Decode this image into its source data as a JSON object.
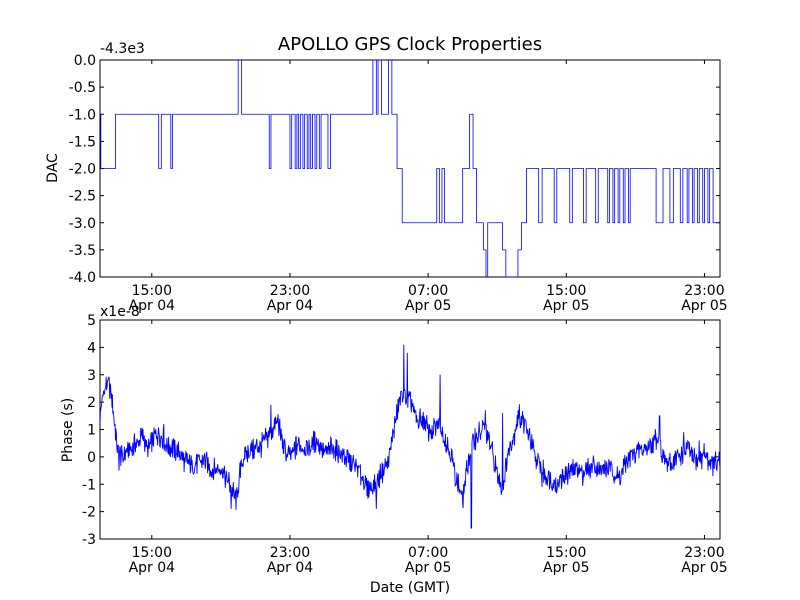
{
  "chart_data": [
    {
      "id": "dac",
      "type": "line",
      "title": "APOLLO GPS Clock Properties",
      "ylabel": "DAC",
      "xlabel": "",
      "offset_label": "-4.3e3",
      "ylim": [
        -4.0,
        0.0
      ],
      "xlim_hours": [
        0,
        35.9
      ],
      "yticks": [
        {
          "v": 0.0,
          "label": "0.0"
        },
        {
          "v": -0.5,
          "label": "-0.5"
        },
        {
          "v": -1.0,
          "label": "-1.0"
        },
        {
          "v": -1.5,
          "label": "-1.5"
        },
        {
          "v": -2.0,
          "label": "-2.0"
        },
        {
          "v": -2.5,
          "label": "-2.5"
        },
        {
          "v": -3.0,
          "label": "-3.0"
        },
        {
          "v": -3.5,
          "label": "-3.5"
        },
        {
          "v": -4.0,
          "label": "-4.0"
        }
      ],
      "xticks": [
        {
          "h": 3,
          "time": "15:00",
          "date": "Apr 04"
        },
        {
          "h": 11,
          "time": "23:00",
          "date": "Apr 04"
        },
        {
          "h": 19,
          "time": "07:00",
          "date": "Apr 05"
        },
        {
          "h": 27,
          "time": "15:00",
          "date": "Apr 05"
        },
        {
          "h": 35,
          "time": "23:00",
          "date": "Apr 05"
        }
      ],
      "color": "#0000ff",
      "series": [
        {
          "name": "DAC",
          "steps": [
            [
              0.0,
              -1.0
            ],
            [
              0.05,
              -2.0
            ],
            [
              0.9,
              -1.0
            ],
            [
              3.4,
              -2.0
            ],
            [
              3.55,
              -1.0
            ],
            [
              4.1,
              -2.0
            ],
            [
              4.2,
              -1.0
            ],
            [
              8.0,
              0.0
            ],
            [
              8.2,
              -1.0
            ],
            [
              9.8,
              -2.0
            ],
            [
              9.9,
              -1.0
            ],
            [
              11.0,
              -2.0
            ],
            [
              11.1,
              -1.0
            ],
            [
              11.3,
              -2.0
            ],
            [
              11.4,
              -1.0
            ],
            [
              11.5,
              -2.0
            ],
            [
              11.6,
              -1.0
            ],
            [
              11.75,
              -2.0
            ],
            [
              11.85,
              -1.0
            ],
            [
              12.0,
              -2.0
            ],
            [
              12.1,
              -1.0
            ],
            [
              12.2,
              -2.0
            ],
            [
              12.3,
              -1.0
            ],
            [
              12.45,
              -2.0
            ],
            [
              12.55,
              -1.0
            ],
            [
              12.7,
              -2.0
            ],
            [
              12.8,
              -1.0
            ],
            [
              13.2,
              -2.0
            ],
            [
              13.35,
              -1.0
            ],
            [
              15.8,
              0.0
            ],
            [
              16.0,
              -1.0
            ],
            [
              16.1,
              0.0
            ],
            [
              16.3,
              -1.0
            ],
            [
              16.7,
              0.0
            ],
            [
              16.9,
              -1.0
            ],
            [
              17.2,
              -2.0
            ],
            [
              17.5,
              -3.0
            ],
            [
              19.5,
              -2.0
            ],
            [
              19.65,
              -3.0
            ],
            [
              19.8,
              -2.0
            ],
            [
              19.95,
              -3.0
            ],
            [
              21.0,
              -2.0
            ],
            [
              21.4,
              -1.0
            ],
            [
              21.6,
              -2.0
            ],
            [
              21.8,
              -3.0
            ],
            [
              22.2,
              -3.5
            ],
            [
              22.35,
              -4.0
            ],
            [
              22.45,
              -3.0
            ],
            [
              23.3,
              -3.5
            ],
            [
              23.5,
              -4.0
            ],
            [
              24.2,
              -3.5
            ],
            [
              24.4,
              -3.0
            ],
            [
              24.7,
              -2.0
            ],
            [
              25.4,
              -3.0
            ],
            [
              25.6,
              -2.0
            ],
            [
              26.3,
              -3.0
            ],
            [
              26.45,
              -2.0
            ],
            [
              27.2,
              -3.0
            ],
            [
              27.35,
              -2.0
            ],
            [
              28.0,
              -3.0
            ],
            [
              28.15,
              -2.0
            ],
            [
              28.7,
              -3.0
            ],
            [
              28.85,
              -2.0
            ],
            [
              29.4,
              -3.0
            ],
            [
              29.5,
              -2.0
            ],
            [
              29.7,
              -3.0
            ],
            [
              29.8,
              -2.0
            ],
            [
              30.0,
              -3.0
            ],
            [
              30.1,
              -2.0
            ],
            [
              30.3,
              -3.0
            ],
            [
              30.4,
              -2.0
            ],
            [
              30.6,
              -3.0
            ],
            [
              30.7,
              -2.0
            ],
            [
              32.2,
              -3.0
            ],
            [
              32.6,
              -2.0
            ],
            [
              33.0,
              -3.0
            ],
            [
              33.2,
              -2.0
            ],
            [
              33.6,
              -3.0
            ],
            [
              33.75,
              -2.0
            ],
            [
              34.0,
              -3.0
            ],
            [
              34.1,
              -2.0
            ],
            [
              34.3,
              -3.0
            ],
            [
              34.4,
              -2.0
            ],
            [
              34.6,
              -3.0
            ],
            [
              34.7,
              -2.0
            ],
            [
              34.9,
              -3.0
            ],
            [
              35.0,
              -2.0
            ],
            [
              35.2,
              -3.0
            ],
            [
              35.3,
              -2.0
            ],
            [
              35.5,
              -3.0
            ],
            [
              35.9,
              -3.0
            ]
          ]
        }
      ]
    },
    {
      "id": "phase",
      "type": "line",
      "title": "",
      "ylabel": "Phase (s)",
      "xlabel": "Date (GMT)",
      "offset_label": "x1e-8",
      "ylim": [
        -3,
        5
      ],
      "xlim_hours": [
        0,
        35.9
      ],
      "yticks": [
        {
          "v": 5,
          "label": "5"
        },
        {
          "v": 4,
          "label": "4"
        },
        {
          "v": 3,
          "label": "3"
        },
        {
          "v": 2,
          "label": "2"
        },
        {
          "v": 1,
          "label": "1"
        },
        {
          "v": 0,
          "label": "0"
        },
        {
          "v": -1,
          "label": "-1"
        },
        {
          "v": -2,
          "label": "-2"
        },
        {
          "v": -3,
          "label": "-3"
        }
      ],
      "xticks": [
        {
          "h": 3,
          "time": "15:00",
          "date": "Apr 04"
        },
        {
          "h": 11,
          "time": "23:00",
          "date": "Apr 04"
        },
        {
          "h": 19,
          "time": "07:00",
          "date": "Apr 05"
        },
        {
          "h": 27,
          "time": "15:00",
          "date": "Apr 05"
        },
        {
          "h": 35,
          "time": "23:00",
          "date": "Apr 05"
        }
      ],
      "color": "#0000ff",
      "series": [
        {
          "name": "Phase",
          "points": [
            [
              0.0,
              1.5
            ],
            [
              0.2,
              2.4
            ],
            [
              0.4,
              2.7
            ],
            [
              0.6,
              2.5
            ],
            [
              0.8,
              1.6
            ],
            [
              1.0,
              0.3
            ],
            [
              1.3,
              0.0
            ],
            [
              1.6,
              0.2
            ],
            [
              2.0,
              0.4
            ],
            [
              2.4,
              0.8
            ],
            [
              2.8,
              0.3
            ],
            [
              3.0,
              0.6
            ],
            [
              3.4,
              0.9
            ],
            [
              3.8,
              0.4
            ],
            [
              4.2,
              0.3
            ],
            [
              4.6,
              0.1
            ],
            [
              5.0,
              -0.2
            ],
            [
              5.5,
              -0.3
            ],
            [
              6.0,
              -0.1
            ],
            [
              6.5,
              -0.5
            ],
            [
              7.0,
              -0.4
            ],
            [
              7.5,
              -1.0
            ],
            [
              7.9,
              -1.6
            ],
            [
              8.2,
              -0.2
            ],
            [
              8.6,
              0.2
            ],
            [
              9.0,
              0.3
            ],
            [
              9.5,
              0.5
            ],
            [
              10.0,
              1.0
            ],
            [
              10.3,
              1.4
            ],
            [
              10.6,
              0.3
            ],
            [
              11.0,
              0.0
            ],
            [
              11.5,
              0.5
            ],
            [
              12.0,
              0.3
            ],
            [
              12.5,
              0.6
            ],
            [
              13.0,
              0.2
            ],
            [
              13.5,
              0.3
            ],
            [
              14.0,
              0.1
            ],
            [
              14.5,
              -0.2
            ],
            [
              15.0,
              -0.5
            ],
            [
              15.5,
              -1.2
            ],
            [
              16.0,
              -1.0
            ],
            [
              16.3,
              -0.6
            ],
            [
              16.7,
              -0.2
            ],
            [
              17.0,
              1.0
            ],
            [
              17.3,
              1.8
            ],
            [
              17.5,
              2.4
            ],
            [
              17.8,
              2.1
            ],
            [
              18.1,
              1.8
            ],
            [
              18.4,
              1.2
            ],
            [
              18.7,
              1.4
            ],
            [
              19.0,
              1.0
            ],
            [
              19.3,
              0.9
            ],
            [
              19.6,
              1.3
            ],
            [
              20.0,
              0.6
            ],
            [
              20.3,
              0.2
            ],
            [
              20.6,
              -0.7
            ],
            [
              21.0,
              -1.6
            ],
            [
              21.3,
              -0.2
            ],
            [
              21.6,
              0.6
            ],
            [
              22.0,
              0.9
            ],
            [
              22.3,
              1.0
            ],
            [
              22.6,
              0.4
            ],
            [
              23.0,
              -0.6
            ],
            [
              23.3,
              -1.2
            ],
            [
              23.6,
              0.0
            ],
            [
              24.0,
              0.9
            ],
            [
              24.3,
              1.5
            ],
            [
              24.6,
              1.2
            ],
            [
              24.9,
              0.6
            ],
            [
              25.2,
              0.0
            ],
            [
              25.6,
              -0.5
            ],
            [
              26.0,
              -0.8
            ],
            [
              26.5,
              -1.0
            ],
            [
              27.0,
              -0.6
            ],
            [
              27.5,
              -0.4
            ],
            [
              28.0,
              -0.6
            ],
            [
              28.5,
              -0.3
            ],
            [
              29.0,
              -0.5
            ],
            [
              29.5,
              -0.4
            ],
            [
              30.0,
              -0.8
            ],
            [
              30.5,
              -0.2
            ],
            [
              31.0,
              0.2
            ],
            [
              31.5,
              0.3
            ],
            [
              32.0,
              0.5
            ],
            [
              32.3,
              0.8
            ],
            [
              32.6,
              0.0
            ],
            [
              33.0,
              -0.3
            ],
            [
              33.5,
              0.0
            ],
            [
              34.0,
              0.3
            ],
            [
              34.5,
              -0.2
            ],
            [
              35.0,
              0.1
            ],
            [
              35.5,
              -0.3
            ],
            [
              35.9,
              -0.2
            ]
          ],
          "spikes": [
            [
              0.1,
              2.0
            ],
            [
              0.45,
              2.8
            ],
            [
              1.1,
              -0.5
            ],
            [
              3.7,
              1.2
            ],
            [
              7.6,
              -1.9
            ],
            [
              9.9,
              1.9
            ],
            [
              16.0,
              -1.9
            ],
            [
              17.6,
              4.1
            ],
            [
              17.8,
              3.8
            ],
            [
              19.7,
              3.0
            ],
            [
              20.9,
              -1.3
            ],
            [
              21.5,
              -2.6
            ],
            [
              22.3,
              1.7
            ],
            [
              23.3,
              1.6
            ],
            [
              24.2,
              1.7
            ],
            [
              25.6,
              -1.1
            ],
            [
              32.4,
              1.5
            ],
            [
              33.8,
              0.9
            ],
            [
              34.7,
              0.6
            ],
            [
              35.2,
              -0.5
            ]
          ]
        }
      ]
    }
  ]
}
